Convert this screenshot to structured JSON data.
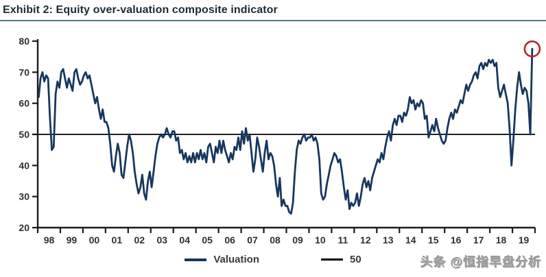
{
  "title": "Exhibit 2: Equity over-valuation composite indicator",
  "watermark": {
    "text": "头条 @恒指早盘分析"
  },
  "legend": [
    {
      "label": "Valuation",
      "color": "#17365d"
    },
    {
      "label": "50",
      "color": "#000000"
    }
  ],
  "colors": {
    "line": "#17365d",
    "reference_line": "#000000",
    "axis": "#1a1a1a",
    "tick_label": "#2f2f2f",
    "title_underline": "#4f7987",
    "annotation_circle": "#c0202c"
  },
  "chart_data": {
    "type": "line",
    "title": "Exhibit 2: Equity over-valuation composite indicator",
    "xlabel": "",
    "ylabel": "",
    "ylim": [
      20,
      80
    ],
    "y_ticks": [
      20,
      30,
      40,
      50,
      60,
      70,
      80
    ],
    "x_tick_labels": [
      "98",
      "99",
      "00",
      "01",
      "02",
      "03",
      "04",
      "05",
      "06",
      "07",
      "08",
      "09",
      "10",
      "11",
      "12",
      "13",
      "14",
      "15",
      "16",
      "17",
      "18",
      "19"
    ],
    "frequency": "monthly",
    "start": "1998-01",
    "end": "2019-11",
    "grid": false,
    "legend_position": "bottom-center",
    "reference_line": {
      "name": "50",
      "value": 50
    },
    "annotation": {
      "type": "circle",
      "target": "last-point",
      "color": "#c0202c",
      "note": "final value circled in red"
    },
    "series": [
      {
        "name": "Valuation",
        "values": [
          62,
          68,
          70,
          67,
          69,
          68,
          55,
          45,
          46,
          63,
          67,
          65,
          70,
          71,
          68,
          65,
          68,
          66,
          64,
          70,
          71,
          68,
          66,
          67,
          69,
          70,
          68,
          69,
          66,
          63,
          60,
          62,
          58,
          55,
          58,
          54,
          54,
          52,
          47,
          40,
          38,
          43,
          47,
          44,
          37,
          36,
          41,
          46,
          50,
          48,
          44,
          38,
          34,
          31,
          33,
          37,
          31,
          29,
          35,
          38,
          33,
          38,
          43,
          47,
          49,
          50,
          49,
          50,
          52,
          50,
          49,
          51,
          51,
          48,
          49,
          44,
          45,
          42,
          44,
          41,
          43,
          41,
          44,
          41,
          44,
          42,
          45,
          42,
          44,
          41,
          46,
          47,
          44,
          41,
          46,
          44,
          48,
          44,
          48,
          45,
          43,
          41,
          44,
          42,
          46,
          45,
          49,
          45,
          51,
          47,
          52,
          48,
          50,
          44,
          38,
          42,
          49,
          46,
          42,
          38,
          44,
          48,
          42,
          44,
          43,
          40,
          34,
          30,
          36,
          27,
          29,
          27,
          27,
          25,
          24.5,
          28,
          38,
          45,
          48,
          47,
          49,
          50,
          48,
          49,
          49,
          50,
          48,
          49,
          47,
          42,
          31,
          29,
          30,
          34,
          37,
          40,
          42,
          44,
          43,
          41,
          42,
          38,
          33,
          29,
          32,
          26,
          28,
          27,
          28,
          31,
          27,
          30,
          34,
          36,
          33,
          35,
          32,
          36,
          38,
          40,
          42,
          41,
          44,
          42,
          46,
          49,
          51,
          48,
          53,
          55,
          53,
          56,
          56,
          54,
          57,
          56,
          58,
          62,
          60,
          61,
          58,
          60,
          59,
          61,
          60,
          55,
          56,
          49,
          51,
          53,
          51,
          55,
          52,
          50,
          48,
          47,
          48,
          52,
          55,
          57,
          55,
          58,
          57,
          59,
          61,
          60,
          63,
          66,
          64,
          66,
          67,
          69,
          70,
          68,
          72,
          73,
          71,
          73,
          72,
          74,
          73,
          74,
          72,
          73,
          65,
          62,
          64,
          66,
          63,
          60,
          52,
          40,
          48,
          58,
          65,
          70,
          66,
          63,
          65,
          64,
          60,
          50,
          77.5
        ]
      }
    ]
  }
}
